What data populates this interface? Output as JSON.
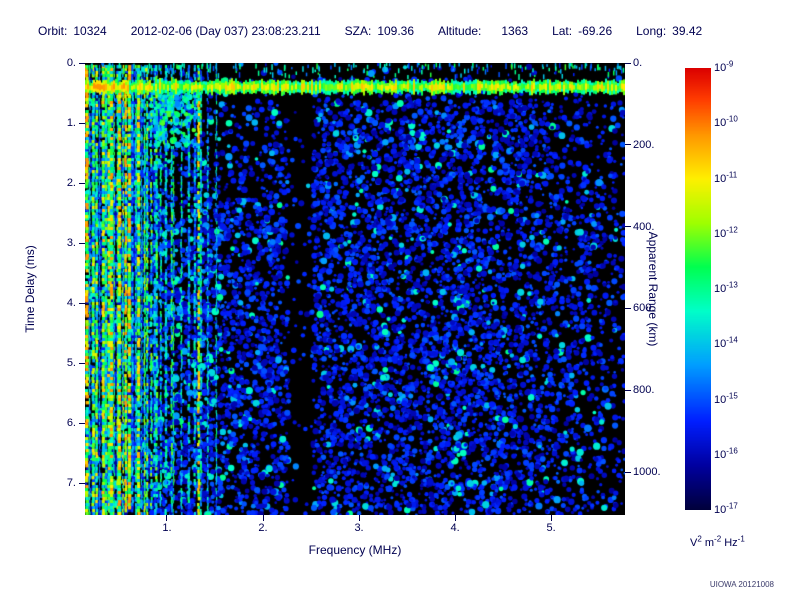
{
  "header": {
    "fields": [
      {
        "id": "orbit",
        "label": "Orbit:",
        "value": "10324"
      },
      {
        "id": "datetime",
        "label": "",
        "value": "2012-02-06 (Day 037) 23:08:23.211"
      },
      {
        "id": "sza",
        "label": "SZA:",
        "value": "109.36"
      },
      {
        "id": "altitude",
        "label": "Altitude:",
        "value": "1363"
      },
      {
        "id": "lat",
        "label": "Lat:",
        "value": "-69.26"
      },
      {
        "id": "long",
        "label": "Long:",
        "value": "39.42"
      }
    ]
  },
  "chart_data": {
    "type": "heatmap",
    "subtype": "radar-sounder-ionogram-spectrogram",
    "xlabel": "Frequency (MHz)",
    "ylabel_left": "Time Delay (ms)",
    "ylabel_right": "Apparent Range (km)",
    "xlim": [
      0.146,
      5.77
    ],
    "ylim_ms": [
      0,
      7.53
    ],
    "ylim_right_km": [
      0,
      1105
    ],
    "y_axes_increase_downward": true,
    "grid": false,
    "background": "black (no signal)",
    "x_ticks": [
      {
        "value": 1,
        "label": "1."
      },
      {
        "value": 2,
        "label": "2."
      },
      {
        "value": 3,
        "label": "3."
      },
      {
        "value": 4,
        "label": "4."
      },
      {
        "value": 5,
        "label": "5."
      }
    ],
    "y_ticks_left": [
      {
        "value": 0,
        "label": "0."
      },
      {
        "value": 1,
        "label": "1."
      },
      {
        "value": 2,
        "label": "2."
      },
      {
        "value": 3,
        "label": "3."
      },
      {
        "value": 4,
        "label": "4."
      },
      {
        "value": 5,
        "label": "5."
      },
      {
        "value": 6,
        "label": "6."
      },
      {
        "value": 7,
        "label": "7."
      }
    ],
    "y_ticks_right": [
      {
        "value": 0,
        "label": "0."
      },
      {
        "value": 200,
        "label": "200."
      },
      {
        "value": 400,
        "label": "400."
      },
      {
        "value": 600,
        "label": "600."
      },
      {
        "value": 800,
        "label": "800."
      },
      {
        "value": 1000,
        "label": "1000."
      }
    ],
    "colorbar": {
      "position": "right",
      "base": "10",
      "exponents": [
        "-9",
        "-10",
        "-11",
        "-12",
        "-13",
        "-14",
        "-15",
        "-16",
        "-17"
      ],
      "scale": "log10 spectral density from 1e-17 (dark blue, bottom) to 1e-9 (red, top)",
      "top_color": "#dd0000",
      "bottom_color": "#000060",
      "unit_parts": [
        {
          "base": "V",
          "exp": "2"
        },
        {
          "base": "m",
          "exp": "-2"
        },
        {
          "base": "Hz",
          "exp": "-1"
        }
      ]
    },
    "features": {
      "noise_speckle": "dark/medium blue blobs over black across whole plot",
      "surface_band": {
        "time_ms": 0.4,
        "color": "green-cyan",
        "span": "full frequency range"
      },
      "plasma_lines_mhz": {
        "range": [
          0.125,
          1.58
        ],
        "dense_below_mhz": 0.9,
        "strong_line_mhz": 1.33,
        "secondary_line_mhz": 1.05
      },
      "dark_gap_mhz": [
        2.27,
        2.52
      ],
      "dark_pocket": {
        "f_mhz": [
          0.95,
          2.27
        ],
        "t_ms": [
          0.55,
          2.3
        ]
      },
      "sparse_right_above_mhz": 4.4,
      "cusp_cluster": {
        "f_mhz": [
          0.82,
          1.32
        ],
        "t_ms": [
          0.4,
          1.4
        ]
      }
    }
  },
  "footer": {
    "credit": "UIOWA 20121008"
  }
}
